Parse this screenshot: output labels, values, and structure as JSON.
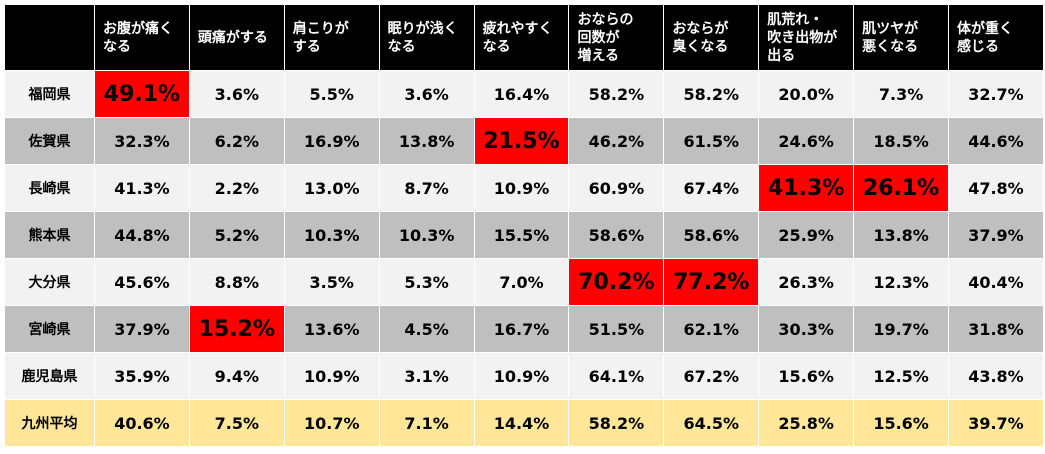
{
  "chart_data": {
    "type": "table",
    "highlight_color": "#ff0000",
    "columns": [
      "お腹が痛く\nなる",
      "頭痛がする",
      "肩こりが\nする",
      "眠りが浅く\nなる",
      "疲れやすく\nなる",
      "おならの\n回数が\n増える",
      "おならが\n臭くなる",
      "肌荒れ・\n吹き出物が\n出る",
      "肌ツヤが\n悪くなる",
      "体が重く\n感じる"
    ],
    "rows": [
      {
        "label": "福岡県",
        "style": "light",
        "values": [
          "49.1%",
          "3.6%",
          "5.5%",
          "3.6%",
          "16.4%",
          "58.2%",
          "58.2%",
          "20.0%",
          "7.3%",
          "32.7%"
        ],
        "highlight": [
          0
        ]
      },
      {
        "label": "佐賀県",
        "style": "dark",
        "values": [
          "32.3%",
          "6.2%",
          "16.9%",
          "13.8%",
          "21.5%",
          "46.2%",
          "61.5%",
          "24.6%",
          "18.5%",
          "44.6%"
        ],
        "highlight": [
          4
        ]
      },
      {
        "label": "長崎県",
        "style": "light",
        "values": [
          "41.3%",
          "2.2%",
          "13.0%",
          "8.7%",
          "10.9%",
          "60.9%",
          "67.4%",
          "41.3%",
          "26.1%",
          "47.8%"
        ],
        "highlight": [
          7,
          8
        ]
      },
      {
        "label": "熊本県",
        "style": "dark",
        "values": [
          "44.8%",
          "5.2%",
          "10.3%",
          "10.3%",
          "15.5%",
          "58.6%",
          "58.6%",
          "25.9%",
          "13.8%",
          "37.9%"
        ],
        "highlight": []
      },
      {
        "label": "大分県",
        "style": "light",
        "values": [
          "45.6%",
          "8.8%",
          "3.5%",
          "5.3%",
          "7.0%",
          "70.2%",
          "77.2%",
          "26.3%",
          "12.3%",
          "40.4%"
        ],
        "highlight": [
          5,
          6
        ]
      },
      {
        "label": "宮崎県",
        "style": "dark",
        "values": [
          "37.9%",
          "15.2%",
          "13.6%",
          "4.5%",
          "16.7%",
          "51.5%",
          "62.1%",
          "30.3%",
          "19.7%",
          "31.8%"
        ],
        "highlight": [
          1
        ]
      },
      {
        "label": "鹿児島県",
        "style": "light",
        "values": [
          "35.9%",
          "9.4%",
          "10.9%",
          "3.1%",
          "10.9%",
          "64.1%",
          "67.2%",
          "15.6%",
          "12.5%",
          "43.8%"
        ],
        "highlight": []
      },
      {
        "label": "九州平均",
        "style": "avg",
        "values": [
          "40.6%",
          "7.5%",
          "10.7%",
          "7.1%",
          "14.4%",
          "58.2%",
          "64.5%",
          "25.8%",
          "15.6%",
          "39.7%"
        ],
        "highlight": []
      }
    ]
  }
}
